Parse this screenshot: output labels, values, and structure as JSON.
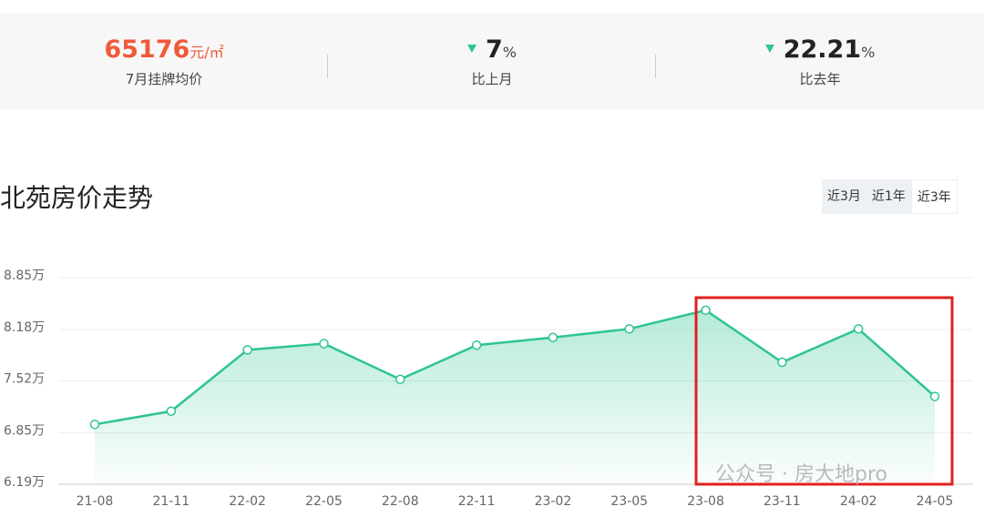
{
  "stats": [
    {
      "value": "65176",
      "unit": "元/㎡",
      "label": "7月挂牌均价"
    },
    {
      "value": "7",
      "unit": "%",
      "label": "比上月"
    },
    {
      "value": "22.21",
      "unit": "%",
      "label": "比去年"
    }
  ],
  "tabs": [
    "近3月",
    "近1年",
    "近3年"
  ],
  "watermark": "公众号 · 房大地pro",
  "chart_data": {
    "type": "line",
    "title": "北苑房价走势",
    "categories": [
      "21-08",
      "21-11",
      "22-02",
      "22-05",
      "22-08",
      "22-11",
      "23-02",
      "23-05",
      "23-08",
      "23-11",
      "24-02",
      "24-05"
    ],
    "values": [
      6.96,
      7.13,
      7.92,
      8.0,
      7.54,
      7.98,
      8.08,
      8.19,
      8.43,
      7.76,
      8.19,
      7.32
    ],
    "color": "#2ec58f",
    "ylim": [
      6.19,
      8.85
    ],
    "yticks": [
      {
        "value": 6.19,
        "label": "6.19万"
      },
      {
        "value": 6.85,
        "label": "6.85万"
      },
      {
        "value": 7.52,
        "label": "7.52万"
      },
      {
        "value": 8.18,
        "label": "8.18万"
      },
      {
        "value": 8.85,
        "label": "8.85万"
      }
    ],
    "grid": true
  }
}
